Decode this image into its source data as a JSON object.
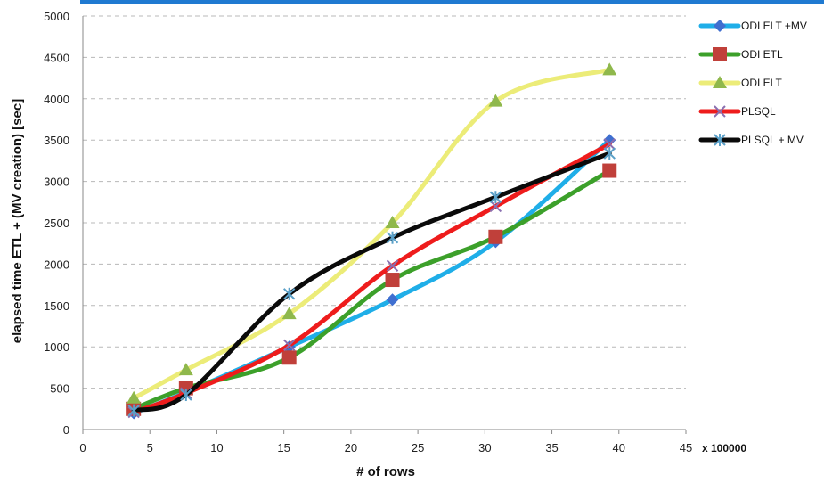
{
  "chart_data": {
    "type": "line",
    "xlabel": "# of rows",
    "ylabel": "elapsed time ETL + (MV creation) [sec]",
    "x_unit": "x 100000",
    "xlim": [
      0,
      45
    ],
    "ylim": [
      0,
      5000
    ],
    "x_ticks": [
      0,
      5,
      10,
      15,
      20,
      25,
      30,
      35,
      40,
      45
    ],
    "y_ticks": [
      0,
      500,
      1000,
      1500,
      2000,
      2500,
      3000,
      3500,
      4000,
      4500,
      5000
    ],
    "grid": true,
    "legend_position": "right",
    "series": [
      {
        "name": "ODI ELT +MV",
        "color": "#1faee8",
        "marker": "diamond",
        "marker_color": "#3f6fd0",
        "points": [
          [
            3.8,
            200
          ],
          [
            7.7,
            450
          ],
          [
            15.4,
            1000
          ],
          [
            23.1,
            1570
          ],
          [
            30.8,
            2270
          ],
          [
            39.3,
            3500
          ]
        ]
      },
      {
        "name": "ODI ETL",
        "color": "#3ca02a",
        "marker": "square",
        "marker_color": "#c0403a",
        "points": [
          [
            3.8,
            250
          ],
          [
            7.7,
            500
          ],
          [
            15.4,
            870
          ],
          [
            23.1,
            1810
          ],
          [
            30.8,
            2330
          ],
          [
            39.3,
            3130
          ]
        ]
      },
      {
        "name": "ODI ELT",
        "color": "#ecec78",
        "marker": "triangle",
        "marker_color": "#8fb84c",
        "points": [
          [
            3.8,
            380
          ],
          [
            7.7,
            720
          ],
          [
            15.4,
            1400
          ],
          [
            23.1,
            2500
          ],
          [
            30.8,
            3970
          ],
          [
            39.3,
            4350
          ]
        ]
      },
      {
        "name": "PLSQL",
        "color": "#ee1c1c",
        "marker": "cross",
        "marker_color": "#8a6fb0",
        "points": [
          [
            3.8,
            210
          ],
          [
            7.7,
            440
          ],
          [
            15.4,
            1020
          ],
          [
            23.1,
            1980
          ],
          [
            30.8,
            2700
          ],
          [
            39.3,
            3450
          ]
        ]
      },
      {
        "name": "PLSQL + MV",
        "color": "#0a0a0a",
        "marker": "star",
        "marker_color": "#5aa0c8",
        "points": [
          [
            3.8,
            230
          ],
          [
            7.7,
            420
          ],
          [
            15.4,
            1640
          ],
          [
            23.1,
            2320
          ],
          [
            30.8,
            2810
          ],
          [
            39.3,
            3340
          ]
        ]
      }
    ]
  }
}
